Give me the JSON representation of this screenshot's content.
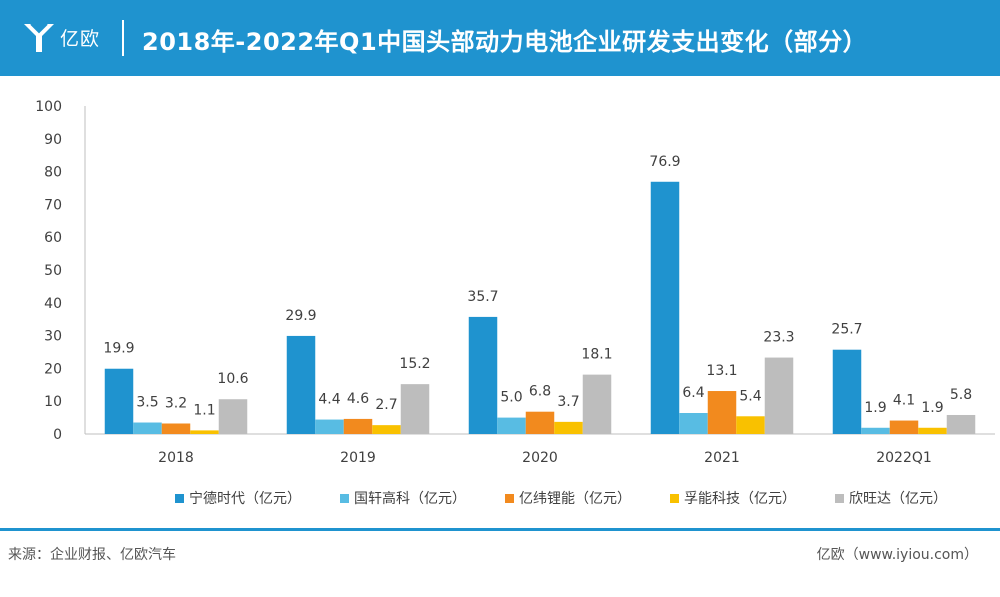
{
  "header": {
    "logo_text": "亿欧",
    "title": "2018年-2022年Q1中国头部动力电池企业研发支出变化（部分）"
  },
  "footer": {
    "source": "来源：企业财报、亿欧汽车",
    "credit": "亿欧（www.iyiou.com）"
  },
  "colors": {
    "brand": "#1f93cf"
  },
  "chart_data": {
    "type": "bar",
    "categories": [
      "2018",
      "2019",
      "2020",
      "2021",
      "2022Q1"
    ],
    "ylim": [
      0,
      100
    ],
    "yticks": [
      0,
      10,
      20,
      30,
      40,
      50,
      60,
      70,
      80,
      90,
      100
    ],
    "legend_position": "bottom",
    "grid": false,
    "series": [
      {
        "name": "宁德时代（亿元）",
        "color": "#1f93cf",
        "values": [
          19.9,
          29.9,
          35.7,
          76.9,
          25.7
        ]
      },
      {
        "name": "国轩高科（亿元）",
        "color": "#58bce3",
        "values": [
          3.5,
          4.4,
          5.0,
          6.4,
          1.9
        ]
      },
      {
        "name": "亿纬锂能（亿元）",
        "color": "#f28a1e",
        "values": [
          3.2,
          4.6,
          6.8,
          13.1,
          4.1
        ]
      },
      {
        "name": "孚能科技（亿元）",
        "color": "#f9c100",
        "values": [
          1.1,
          2.7,
          3.7,
          5.4,
          1.9
        ]
      },
      {
        "name": "欣旺达（亿元）",
        "color": "#bdbdbd",
        "values": [
          10.6,
          15.2,
          18.1,
          23.3,
          5.8
        ]
      }
    ]
  }
}
